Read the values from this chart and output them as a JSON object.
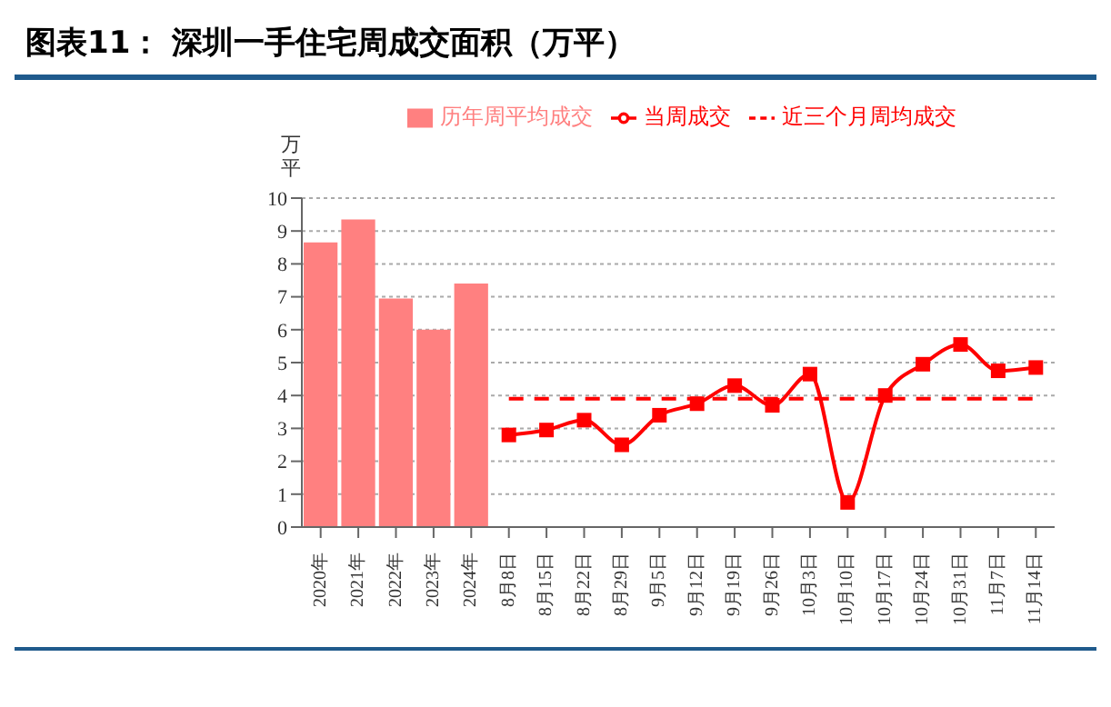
{
  "chart_data": {
    "type": "bar",
    "title": "图表11：   深圳一手住宅周成交面积（万平）",
    "ylabel": "万平",
    "categories": [
      "2020年",
      "2021年",
      "2022年",
      "2023年",
      "2024年",
      "8月8日",
      "8月15日",
      "8月22日",
      "8月29日",
      "9月5日",
      "9月12日",
      "9月19日",
      "9月26日",
      "10月3日",
      "10月10日",
      "10月17日",
      "10月24日",
      "10月31日",
      "11月7日",
      "11月14日"
    ],
    "series": [
      {
        "name": "历年周平均成交",
        "color": "#ff8080",
        "values": [
          8.65,
          9.35,
          6.95,
          6.0,
          7.4,
          null,
          null,
          null,
          null,
          null,
          null,
          null,
          null,
          null,
          null,
          null,
          null,
          null,
          null,
          null
        ]
      },
      {
        "name": "当周成交",
        "type": "line",
        "color": "#ff0000",
        "marker": "square",
        "line_style": "solid",
        "values": [
          null,
          null,
          null,
          null,
          null,
          2.8,
          2.95,
          3.25,
          2.5,
          3.4,
          3.75,
          4.3,
          3.7,
          4.65,
          0.75,
          4.0,
          4.95,
          5.55,
          4.75,
          4.85
        ]
      },
      {
        "name": "近三个月周均成交",
        "type": "line",
        "color": "#ff0000",
        "marker": "none",
        "line_style": "dashed",
        "values": [
          null,
          null,
          null,
          null,
          null,
          3.9,
          3.9,
          3.9,
          3.9,
          3.9,
          3.9,
          3.9,
          3.9,
          3.9,
          3.9,
          3.9,
          3.9,
          3.9,
          3.9,
          3.9
        ]
      }
    ],
    "ylim": [
      0,
      10
    ],
    "yticks": [
      0,
      1,
      2,
      3,
      4,
      5,
      6,
      7,
      8,
      9,
      10
    ],
    "grid": "y",
    "legend": "top"
  }
}
